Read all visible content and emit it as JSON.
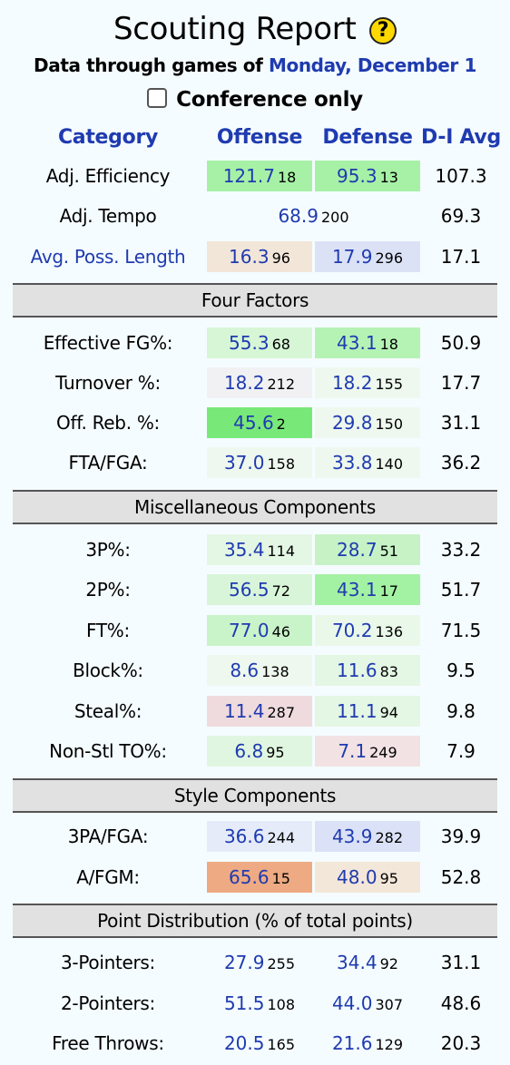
{
  "header": {
    "title": "Scouting Report",
    "help_icon": "?",
    "subtitle_prefix": "Data through games of",
    "subtitle_date": "Monday, December 1",
    "conference_only_label": "Conference only"
  },
  "columns": {
    "category": "Category",
    "offense": "Offense",
    "defense": "Defense",
    "avg": "D-I Avg"
  },
  "top_rows": {
    "efficiency": {
      "label": "Adj. Efficiency",
      "off_val": "121.7",
      "off_rank": "18",
      "def_val": "95.3",
      "def_rank": "13",
      "avg": "107.3"
    },
    "tempo": {
      "label": "Adj. Tempo",
      "val": "68.9",
      "rank": "200",
      "avg": "69.3"
    },
    "poss": {
      "label": "Avg. Poss. Length",
      "off_val": "16.3",
      "off_rank": "96",
      "def_val": "17.9",
      "def_rank": "296",
      "avg": "17.1"
    }
  },
  "four_factors": {
    "title": "Four Factors",
    "rows": [
      {
        "label": "Effective FG%:",
        "off_val": "55.3",
        "off_rank": "68",
        "def_val": "43.1",
        "def_rank": "18",
        "avg": "50.9"
      },
      {
        "label": "Turnover %:",
        "off_val": "18.2",
        "off_rank": "212",
        "def_val": "18.2",
        "def_rank": "155",
        "avg": "17.7"
      },
      {
        "label": "Off. Reb. %:",
        "off_val": "45.6",
        "off_rank": "2",
        "def_val": "29.8",
        "def_rank": "150",
        "avg": "31.1"
      },
      {
        "label": "FTA/FGA:",
        "off_val": "37.0",
        "off_rank": "158",
        "def_val": "33.8",
        "def_rank": "140",
        "avg": "36.2"
      }
    ]
  },
  "misc": {
    "title": "Miscellaneous Components",
    "rows": [
      {
        "label": "3P%:",
        "off_val": "35.4",
        "off_rank": "114",
        "def_val": "28.7",
        "def_rank": "51",
        "avg": "33.2"
      },
      {
        "label": "2P%:",
        "off_val": "56.5",
        "off_rank": "72",
        "def_val": "43.1",
        "def_rank": "17",
        "avg": "51.7"
      },
      {
        "label": "FT%:",
        "off_val": "77.0",
        "off_rank": "46",
        "def_val": "70.2",
        "def_rank": "136",
        "avg": "71.5"
      },
      {
        "label": "Block%:",
        "off_val": "8.6",
        "off_rank": "138",
        "def_val": "11.6",
        "def_rank": "83",
        "avg": "9.5"
      },
      {
        "label": "Steal%:",
        "off_val": "11.4",
        "off_rank": "287",
        "def_val": "11.1",
        "def_rank": "94",
        "avg": "9.8"
      },
      {
        "label": "Non-Stl TO%:",
        "off_val": "6.8",
        "off_rank": "95",
        "def_val": "7.1",
        "def_rank": "249",
        "avg": "7.9"
      }
    ]
  },
  "style": {
    "title": "Style Components",
    "rows": [
      {
        "label": "3PA/FGA:",
        "off_val": "36.6",
        "off_rank": "244",
        "def_val": "43.9",
        "def_rank": "282",
        "avg": "39.9"
      },
      {
        "label": "A/FGM:",
        "off_val": "65.6",
        "off_rank": "15",
        "def_val": "48.0",
        "def_rank": "95",
        "avg": "52.8"
      }
    ]
  },
  "points": {
    "title": "Point Distribution (% of total points)",
    "rows": [
      {
        "label": "3-Pointers:",
        "off_val": "27.9",
        "off_rank": "255",
        "def_val": "34.4",
        "def_rank": "92",
        "avg": "31.1"
      },
      {
        "label": "2-Pointers:",
        "off_val": "51.5",
        "off_rank": "108",
        "def_val": "44.0",
        "def_rank": "307",
        "avg": "48.6"
      },
      {
        "label": "Free Throws:",
        "off_val": "20.5",
        "off_rank": "165",
        "def_val": "21.6",
        "def_rank": "129",
        "avg": "20.3"
      }
    ]
  },
  "cell_colors": {
    "efficiency_off": "#a6f1a6",
    "efficiency_def": "#a6f1a6",
    "poss_off": "#f2e6d8",
    "poss_def": "#dce2f6",
    "ff0_off": "#d6f6d6",
    "ff0_def": "#b5f3b5",
    "ff1_off": "#f1f1f4",
    "ff1_def": "#eef8ee",
    "ff2_off": "#78e978",
    "ff2_def": "#eef8ee",
    "ff3_off": "#eef8ee",
    "ff3_def": "#eef8ee",
    "misc0_off": "#e4f6e4",
    "misc0_def": "#c6f2c6",
    "misc1_off": "#d9f5d9",
    "misc1_def": "#a3f1a3",
    "misc2_off": "#c9f3c9",
    "misc2_def": "#eaf8ea",
    "misc3_off": "#eef8ee",
    "misc3_def": "#e4f6e4",
    "misc4_off": "#efdbdd",
    "misc4_def": "#e4f6e4",
    "misc5_off": "#e1f6e1",
    "misc5_def": "#f2e2e4",
    "style0_off": "#e6ebfa",
    "style0_def": "#dbe1f6",
    "style1_off": "#eeaa82",
    "style1_def": "#f3e7d9"
  }
}
